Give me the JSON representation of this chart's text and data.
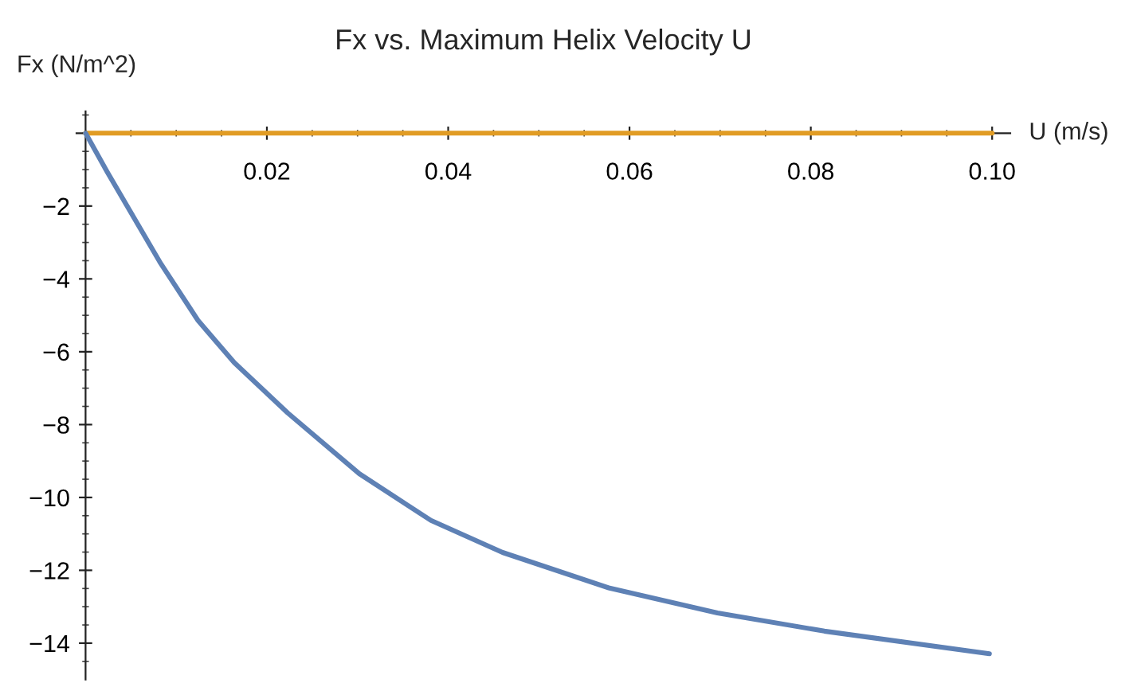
{
  "chart_data": {
    "type": "line",
    "title": "Fx vs. Maximum Helix Velocity U",
    "xlabel": "U (m/s)",
    "ylabel": "Fx (N/m^2)",
    "x": [
      0,
      0.0024,
      0.0082,
      0.0124,
      0.0164,
      0.0223,
      0.0302,
      0.0381,
      0.046,
      0.0578,
      0.0697,
      0.0815,
      0.0997
    ],
    "series": [
      {
        "color": "#e19c24",
        "x": [
          0,
          0.1
        ],
        "values": [
          0,
          0
        ]
      },
      {
        "color": "#5e81b5",
        "values": [
          0,
          -1.07,
          -3.54,
          -5.14,
          -6.3,
          -7.68,
          -9.35,
          -10.63,
          -11.51,
          -12.49,
          -13.17,
          -13.67,
          -14.29
        ]
      }
    ],
    "xlim": [
      -0.001,
      0.102
    ],
    "ylim": [
      -15,
      0.6
    ],
    "xticks": [
      {
        "value": 0,
        "label": null
      },
      {
        "value": 0.005,
        "label": null
      },
      {
        "value": 0.01,
        "label": null
      },
      {
        "value": 0.015,
        "label": null
      },
      {
        "value": 0.02,
        "label": "0.02"
      },
      {
        "value": 0.025,
        "label": null
      },
      {
        "value": 0.03,
        "label": null
      },
      {
        "value": 0.035,
        "label": null
      },
      {
        "value": 0.04,
        "label": "0.04"
      },
      {
        "value": 0.045,
        "label": null
      },
      {
        "value": 0.05,
        "label": null
      },
      {
        "value": 0.055,
        "label": null
      },
      {
        "value": 0.06,
        "label": "0.06"
      },
      {
        "value": 0.065,
        "label": null
      },
      {
        "value": 0.07,
        "label": null
      },
      {
        "value": 0.075,
        "label": null
      },
      {
        "value": 0.08,
        "label": "0.08"
      },
      {
        "value": 0.085,
        "label": null
      },
      {
        "value": 0.09,
        "label": null
      },
      {
        "value": 0.095,
        "label": null
      },
      {
        "value": 0.1,
        "label": "0.10"
      }
    ],
    "yticks": [
      {
        "value": 0.5,
        "label": null
      },
      {
        "value": 0,
        "label": null
      },
      {
        "value": -0.5,
        "label": null
      },
      {
        "value": -1,
        "label": null
      },
      {
        "value": -1.5,
        "label": null
      },
      {
        "value": -2,
        "label": "−2"
      },
      {
        "value": -2.5,
        "label": null
      },
      {
        "value": -3,
        "label": null
      },
      {
        "value": -3.5,
        "label": null
      },
      {
        "value": -4,
        "label": "−4"
      },
      {
        "value": -4.5,
        "label": null
      },
      {
        "value": -5,
        "label": null
      },
      {
        "value": -5.5,
        "label": null
      },
      {
        "value": -6,
        "label": "−6"
      },
      {
        "value": -6.5,
        "label": null
      },
      {
        "value": -7,
        "label": null
      },
      {
        "value": -7.5,
        "label": null
      },
      {
        "value": -8,
        "label": "−8"
      },
      {
        "value": -8.5,
        "label": null
      },
      {
        "value": -9,
        "label": null
      },
      {
        "value": -9.5,
        "label": null
      },
      {
        "value": -10,
        "label": "−10"
      },
      {
        "value": -10.5,
        "label": null
      },
      {
        "value": -11,
        "label": null
      },
      {
        "value": -11.5,
        "label": null
      },
      {
        "value": -12,
        "label": "−12"
      },
      {
        "value": -12.5,
        "label": null
      },
      {
        "value": -13,
        "label": null
      },
      {
        "value": -13.5,
        "label": null
      },
      {
        "value": -14,
        "label": "−14"
      },
      {
        "value": -14.5,
        "label": null
      }
    ],
    "grid": false,
    "legend": false
  }
}
